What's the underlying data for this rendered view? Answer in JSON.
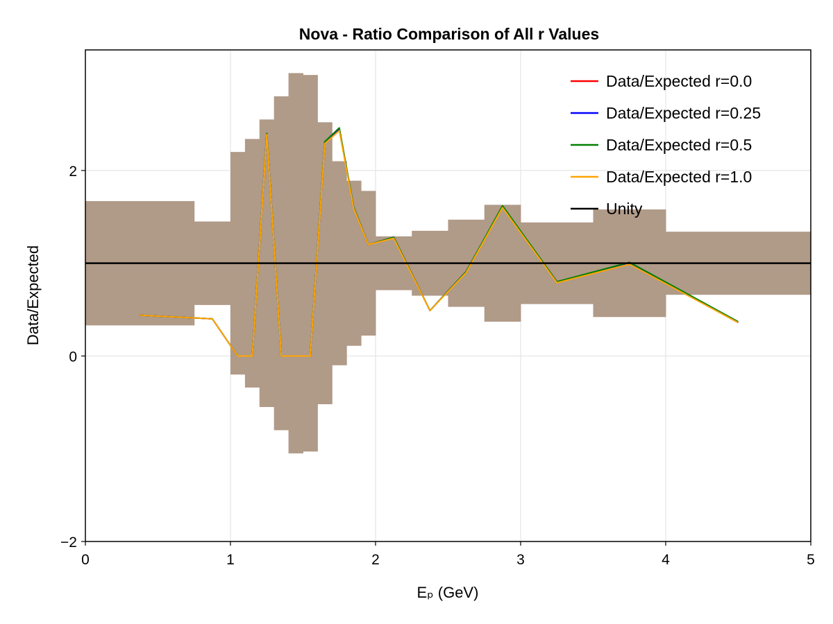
{
  "chart_data": {
    "type": "line",
    "title": "Nova - Ratio Comparison of All r Values",
    "xlabel": "Eₚ (GeV)",
    "ylabel": "Data/Expected",
    "xlim": [
      0,
      5
    ],
    "ylim": [
      -2,
      3.3
    ],
    "grid": true,
    "legend_position": "top-right",
    "x_ticks": [
      {
        "value": 0,
        "label": "0"
      },
      {
        "value": 1,
        "label": "1"
      },
      {
        "value": 2,
        "label": "2"
      },
      {
        "value": 3,
        "label": "3"
      },
      {
        "value": 4,
        "label": "4"
      },
      {
        "value": 5,
        "label": "5"
      }
    ],
    "y_ticks": [
      {
        "value": -2,
        "label": "−2"
      },
      {
        "value": 0,
        "label": "0"
      },
      {
        "value": 2,
        "label": "2"
      }
    ],
    "uncertainty_band": {
      "color": "#b09a88",
      "bins": [
        {
          "x0": 0.0,
          "x1": 0.75,
          "lo": 0.33,
          "hi": 1.67
        },
        {
          "x0": 0.75,
          "x1": 1.0,
          "lo": 0.55,
          "hi": 1.45
        },
        {
          "x0": 1.0,
          "x1": 1.1,
          "lo": -0.2,
          "hi": 2.2
        },
        {
          "x0": 1.1,
          "x1": 1.2,
          "lo": -0.34,
          "hi": 2.34
        },
        {
          "x0": 1.2,
          "x1": 1.3,
          "lo": -0.55,
          "hi": 2.55
        },
        {
          "x0": 1.3,
          "x1": 1.4,
          "lo": -0.8,
          "hi": 2.8
        },
        {
          "x0": 1.4,
          "x1": 1.5,
          "lo": -1.05,
          "hi": 3.05
        },
        {
          "x0": 1.5,
          "x1": 1.6,
          "lo": -1.03,
          "hi": 3.03
        },
        {
          "x0": 1.6,
          "x1": 1.7,
          "lo": -0.52,
          "hi": 2.52
        },
        {
          "x0": 1.7,
          "x1": 1.8,
          "lo": -0.1,
          "hi": 2.1
        },
        {
          "x0": 1.8,
          "x1": 1.9,
          "lo": 0.11,
          "hi": 1.89
        },
        {
          "x0": 1.9,
          "x1": 2.0,
          "lo": 0.22,
          "hi": 1.78
        },
        {
          "x0": 2.0,
          "x1": 2.25,
          "lo": 0.71,
          "hi": 1.29
        },
        {
          "x0": 2.25,
          "x1": 2.5,
          "lo": 0.65,
          "hi": 1.35
        },
        {
          "x0": 2.5,
          "x1": 2.75,
          "lo": 0.53,
          "hi": 1.47
        },
        {
          "x0": 2.75,
          "x1": 3.0,
          "lo": 0.37,
          "hi": 1.63
        },
        {
          "x0": 3.0,
          "x1": 3.5,
          "lo": 0.56,
          "hi": 1.44
        },
        {
          "x0": 3.5,
          "x1": 4.0,
          "lo": 0.42,
          "hi": 1.58
        },
        {
          "x0": 4.0,
          "x1": 5.0,
          "lo": 0.66,
          "hi": 1.34
        }
      ]
    },
    "x": [
      0.375,
      0.875,
      1.05,
      1.15,
      1.25,
      1.35,
      1.45,
      1.55,
      1.65,
      1.75,
      1.85,
      1.95,
      2.125,
      2.375,
      2.625,
      2.875,
      3.25,
      3.75,
      4.5
    ],
    "series": [
      {
        "name": "Data/Expected r=0.0",
        "color": "#ff0000",
        "values": [
          0.44,
          0.4,
          0.0,
          0.0,
          2.4,
          0.0,
          0.0,
          0.0,
          2.3,
          2.45,
          1.6,
          1.2,
          1.28,
          0.49,
          0.91,
          1.61,
          0.8,
          1.0,
          0.36
        ]
      },
      {
        "name": "Data/Expected r=0.25",
        "color": "#0000ff",
        "values": [
          0.44,
          0.4,
          0.0,
          0.0,
          2.4,
          0.0,
          0.0,
          0.0,
          2.3,
          2.45,
          1.6,
          1.2,
          1.28,
          0.49,
          0.91,
          1.61,
          0.8,
          1.0,
          0.36
        ]
      },
      {
        "name": "Data/Expected r=0.5",
        "color": "#008000",
        "values": [
          0.44,
          0.4,
          0.0,
          0.0,
          2.4,
          0.0,
          0.0,
          0.0,
          2.31,
          2.46,
          1.6,
          1.2,
          1.28,
          0.49,
          0.91,
          1.62,
          0.8,
          1.01,
          0.37
        ]
      },
      {
        "name": "Data/Expected r=1.0",
        "color": "#ffa500",
        "values": [
          0.44,
          0.4,
          0.0,
          0.0,
          2.39,
          0.0,
          0.0,
          0.0,
          2.29,
          2.43,
          1.59,
          1.2,
          1.27,
          0.49,
          0.9,
          1.6,
          0.79,
          0.99,
          0.36
        ]
      }
    ],
    "reference_line": {
      "name": "Unity",
      "value": 1.0,
      "color": "#000000"
    }
  }
}
